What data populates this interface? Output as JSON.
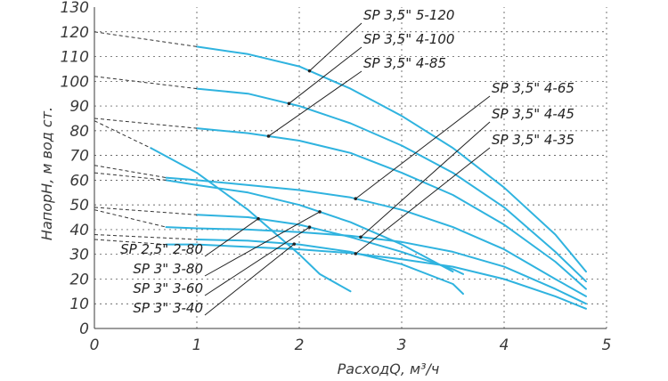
{
  "chart_data": {
    "type": "line",
    "title": "",
    "xlabel": "РасходQ, м³/ч",
    "ylabel": "НапорH, м вод ст.",
    "xlim": [
      0,
      5
    ],
    "ylim": [
      0,
      130
    ],
    "xticks": [
      "0",
      "1",
      "2",
      "3",
      "4",
      "5"
    ],
    "yticks": [
      "0",
      "10",
      "20",
      "30",
      "40",
      "50",
      "60",
      "70",
      "80",
      "90",
      "100",
      "110",
      "120",
      "130"
    ],
    "grid": true,
    "series": [
      {
        "name": "SP 3,5\" 5-120",
        "label_side": "right",
        "anchor_x": 2.1,
        "x": [
          1.0,
          1.5,
          2.0,
          2.5,
          3.0,
          3.5,
          4.0,
          4.5,
          4.8
        ],
        "y": [
          114,
          111,
          106,
          97,
          86,
          73,
          57,
          38,
          23
        ],
        "ext_x": [
          0,
          1.0
        ],
        "ext_y": [
          120,
          114
        ]
      },
      {
        "name": "SP 3,5\" 4-100",
        "label_side": "right",
        "anchor_x": 1.9,
        "x": [
          1.0,
          1.5,
          2.0,
          2.5,
          3.0,
          3.5,
          4.0,
          4.5,
          4.8
        ],
        "y": [
          97,
          95,
          90,
          83,
          74,
          63,
          49,
          31,
          19
        ],
        "ext_x": [
          0,
          1.0
        ],
        "ext_y": [
          102,
          97
        ]
      },
      {
        "name": "SP 3,5\" 4-85",
        "label_side": "right",
        "anchor_x": 1.7,
        "x": [
          1.0,
          1.5,
          2.0,
          2.5,
          3.0,
          3.5,
          4.0,
          4.5,
          4.8
        ],
        "y": [
          81,
          79,
          76,
          71,
          63,
          54,
          42,
          27,
          16
        ],
        "ext_x": [
          0,
          1.0
        ],
        "ext_y": [
          85,
          81
        ]
      },
      {
        "name": "SP 3,5\" 4-65",
        "label_side": "right",
        "anchor_x": 2.55,
        "x": [
          0.7,
          1.0,
          1.5,
          2.0,
          2.5,
          3.0,
          3.5,
          4.0,
          4.5,
          4.8
        ],
        "y": [
          61,
          60,
          58,
          56,
          53,
          48,
          41,
          32,
          20,
          13
        ],
        "ext_x": [
          0,
          0.7
        ],
        "ext_y": [
          66,
          61
        ]
      },
      {
        "name": "SP 3,5\" 4-45",
        "label_side": "right",
        "anchor_x": 2.6,
        "x": [
          0.7,
          1.0,
          1.5,
          2.0,
          2.5,
          3.0,
          3.5,
          4.0,
          4.5,
          4.8
        ],
        "y": [
          41,
          40.5,
          40,
          39,
          37.5,
          35,
          31,
          25,
          16,
          10
        ],
        "ext_x": [
          0,
          0.7
        ],
        "ext_y": [
          48,
          41
        ]
      },
      {
        "name": "SP 3,5\" 4-35",
        "label_side": "right",
        "anchor_x": 2.55,
        "x": [
          0.7,
          1.0,
          1.5,
          2.0,
          2.5,
          3.0,
          3.5,
          4.0,
          4.5,
          4.8
        ],
        "y": [
          34,
          34,
          33,
          32,
          30.5,
          28,
          25,
          20,
          13,
          8
        ],
        "ext_x": [
          0,
          0.7
        ],
        "ext_y": [
          36,
          34
        ]
      },
      {
        "name": "SP 2,5\" 2-80",
        "label_side": "left",
        "anchor_x": 1.6,
        "x": [
          0.55,
          1.0,
          1.5,
          2.0,
          2.2,
          2.5
        ],
        "y": [
          73,
          63,
          48,
          30,
          22,
          15
        ],
        "ext_x": [
          0,
          0.55
        ],
        "ext_y": [
          84,
          73
        ]
      },
      {
        "name": "SP 3\" 3-80",
        "label_side": "left",
        "anchor_x": 2.2,
        "x": [
          0.7,
          1.0,
          1.5,
          2.0,
          2.5,
          3.0,
          3.5
        ],
        "y": [
          60,
          58,
          55,
          50,
          43,
          34,
          23
        ],
        "ext_x": [
          0,
          0.7
        ],
        "ext_y": [
          63,
          60
        ]
      },
      {
        "name": "SP 3\" 3-60",
        "label_side": "left",
        "anchor_x": 2.1,
        "x": [
          1.0,
          1.5,
          2.0,
          2.5,
          3.0,
          3.5,
          3.6
        ],
        "y": [
          46,
          45,
          42,
          37,
          31,
          24,
          22
        ],
        "ext_x": [
          0,
          1.0
        ],
        "ext_y": [
          49,
          46
        ]
      },
      {
        "name": "SP 3\" 3-40",
        "label_side": "left",
        "anchor_x": 1.95,
        "x": [
          1.0,
          1.5,
          2.0,
          2.5,
          3.0,
          3.5,
          3.6
        ],
        "y": [
          36,
          35.5,
          34,
          31,
          26,
          18,
          14
        ],
        "ext_x": [
          0,
          1.0
        ],
        "ext_y": [
          38,
          36
        ]
      }
    ]
  }
}
